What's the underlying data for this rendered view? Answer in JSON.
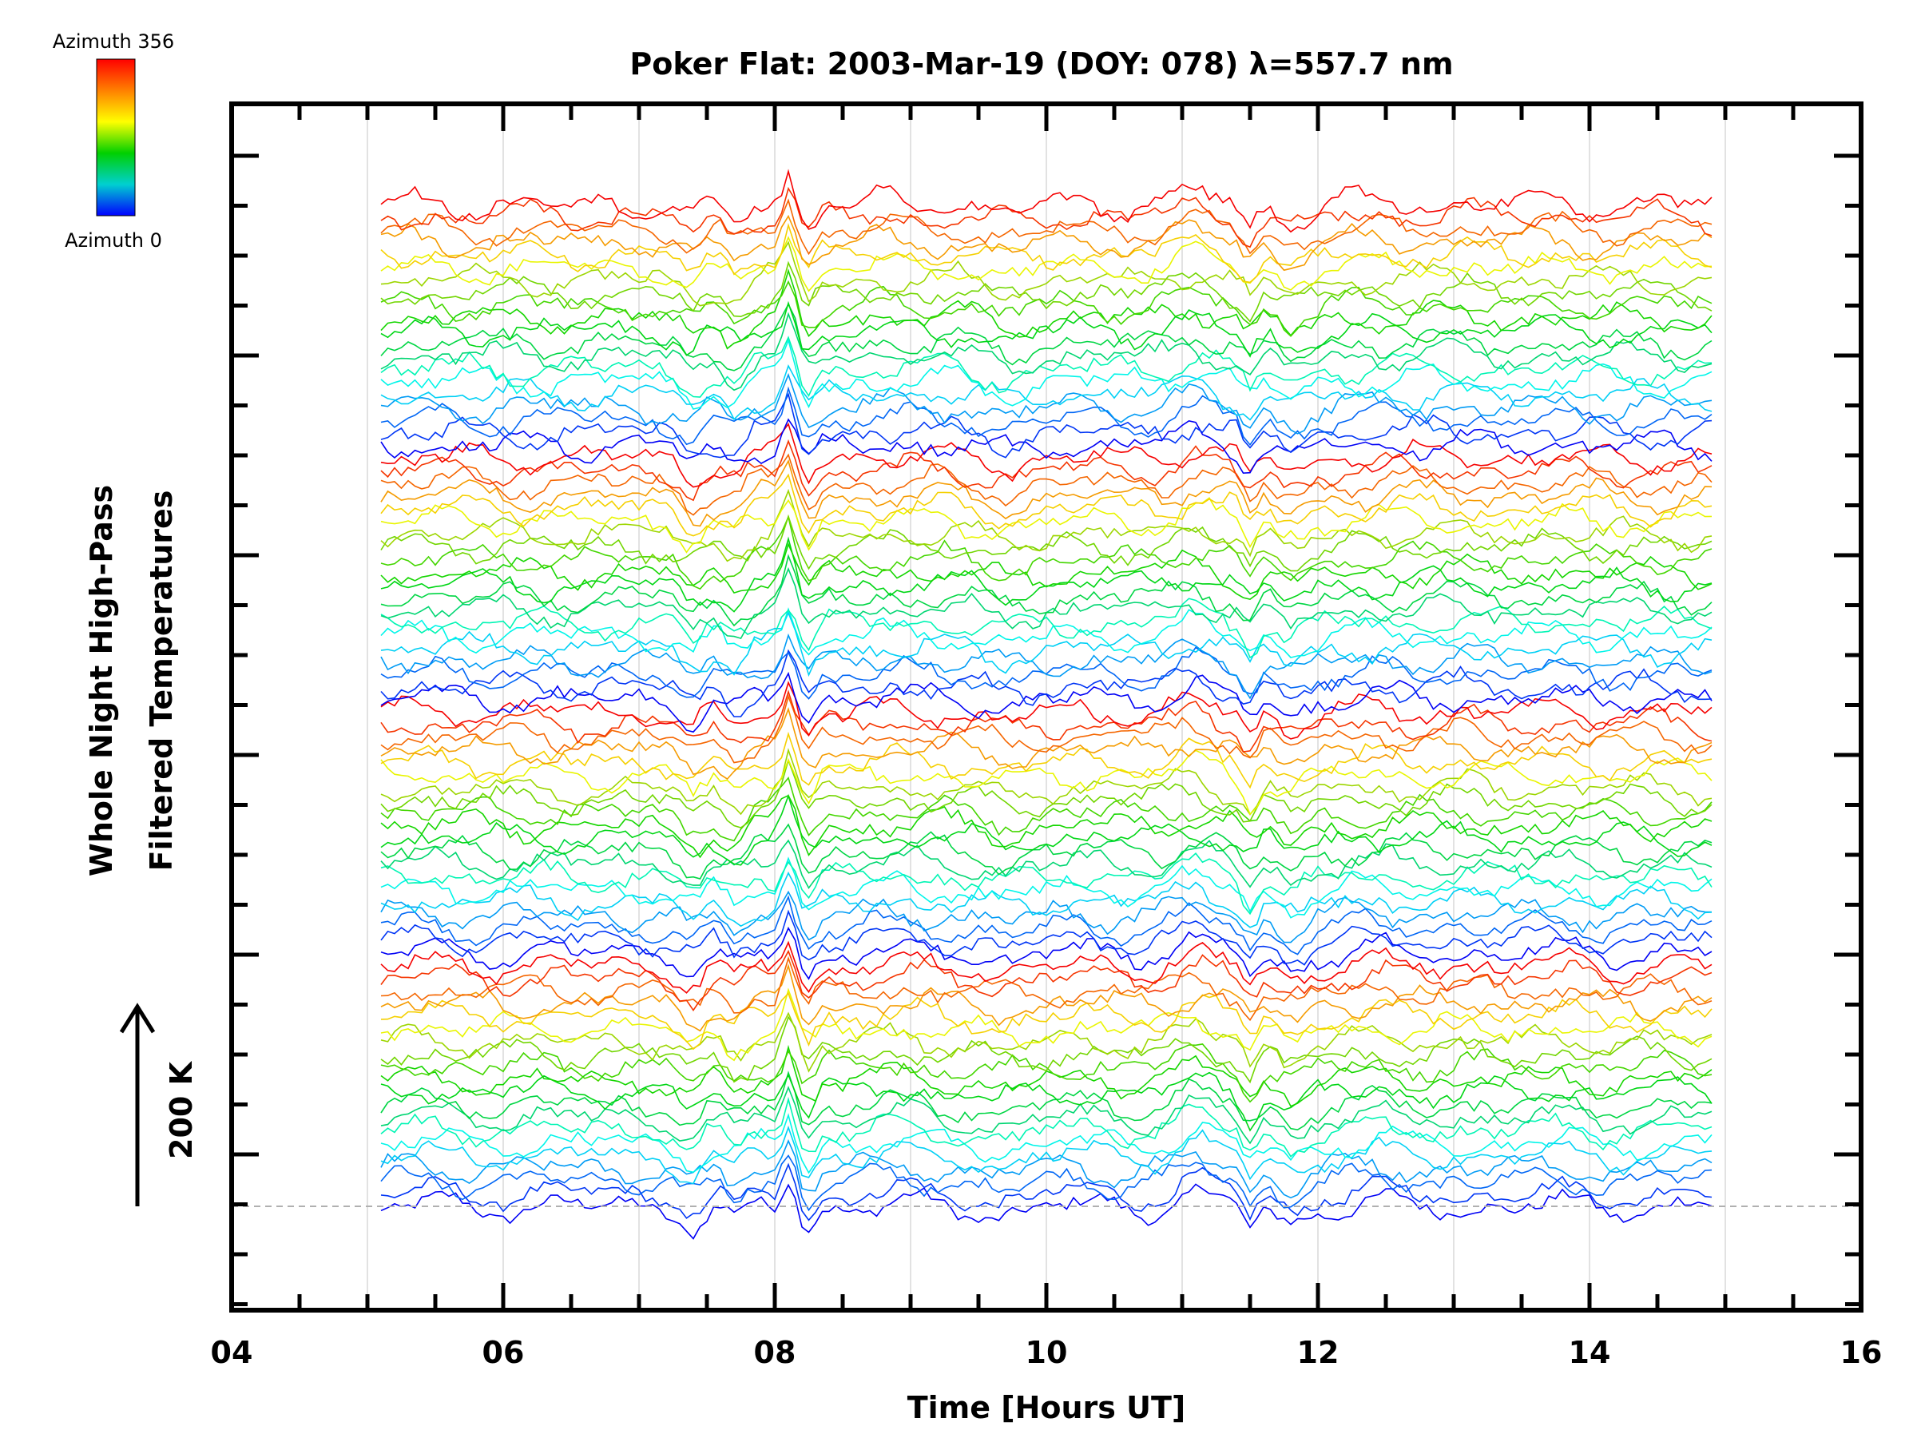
{
  "chart_data": {
    "type": "line",
    "title": "Poker Flat: 2003-Mar-19 (DOY: 078) λ=557.7 nm",
    "xlabel": "Time [Hours UT]",
    "ylabel": [
      "Whole Night High-Pass",
      "Filtered Temperatures"
    ],
    "xlim": [
      4,
      16
    ],
    "x_ticks": [
      "04",
      "06",
      "08",
      "10",
      "12",
      "14",
      "16"
    ],
    "x_range_data": [
      5.1,
      14.9
    ],
    "scale_bar": {
      "label": "200 K",
      "value_K": 200
    },
    "colorbar": {
      "top_label": "Azimuth 356",
      "bottom_label": "Azimuth 0",
      "colors": [
        "#ff0000",
        "#ff8000",
        "#ffff00",
        "#00d000",
        "#00d0d0",
        "#0000ff"
      ]
    },
    "num_traces": 80,
    "grid": "vertical lines every hour",
    "legend": "colorbar top-left"
  }
}
